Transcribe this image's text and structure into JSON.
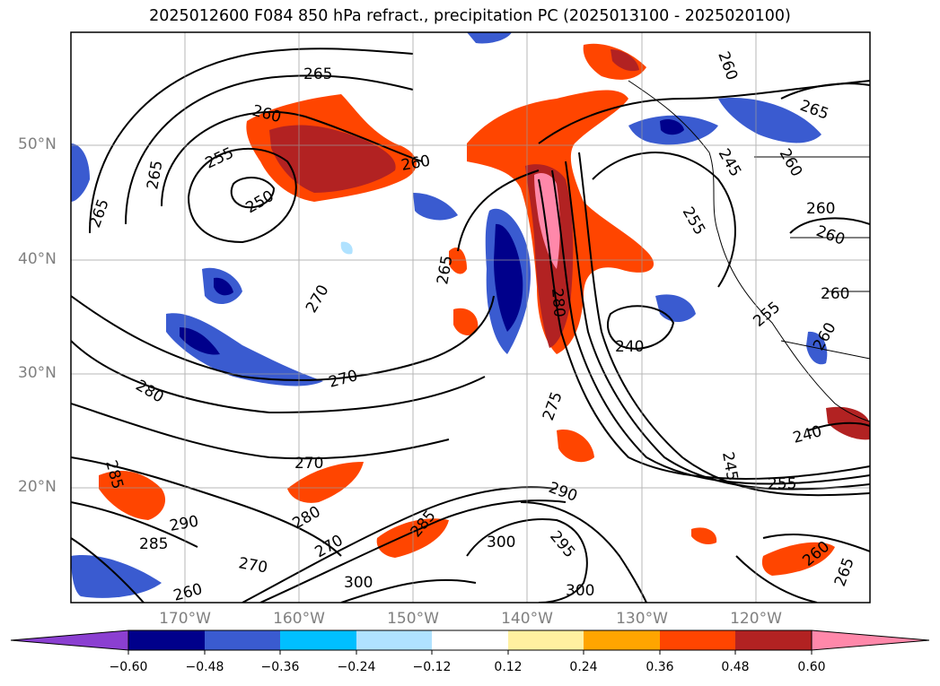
{
  "title": "2025012600 F084 850 hPa refract., precipitation PC (2025013100 - 2025020100)",
  "axes": {
    "lat_labels": [
      "50°N",
      "40°N",
      "30°N",
      "20°N"
    ],
    "lon_labels": [
      "170°W",
      "160°W",
      "150°W",
      "140°W",
      "130°W",
      "120°W"
    ]
  },
  "contour_labels": [
    "265",
    "260",
    "255",
    "250",
    "265",
    "265",
    "260",
    "265",
    "260",
    "255",
    "260",
    "245",
    "260",
    "260",
    "260",
    "265",
    "280",
    "270",
    "280",
    "275",
    "240",
    "240",
    "245",
    "255",
    "285",
    "270",
    "290",
    "280",
    "285",
    "270",
    "270",
    "285",
    "300",
    "290",
    "295",
    "300",
    "300",
    "270",
    "265",
    "260",
    "255",
    "260",
    "260"
  ],
  "colorbar": {
    "ticks": [
      "−0.60",
      "−0.48",
      "−0.36",
      "−0.24",
      "−0.12",
      "0.12",
      "0.24",
      "0.36",
      "0.48",
      "0.60"
    ],
    "colors": [
      "#8b3fd1",
      "#00008b",
      "#3a5bd0",
      "#00bfff",
      "#b0e2ff",
      "#ffffff",
      "#fff0a0",
      "#ffa500",
      "#ff4500",
      "#b22222",
      "#ff88aa"
    ]
  }
}
